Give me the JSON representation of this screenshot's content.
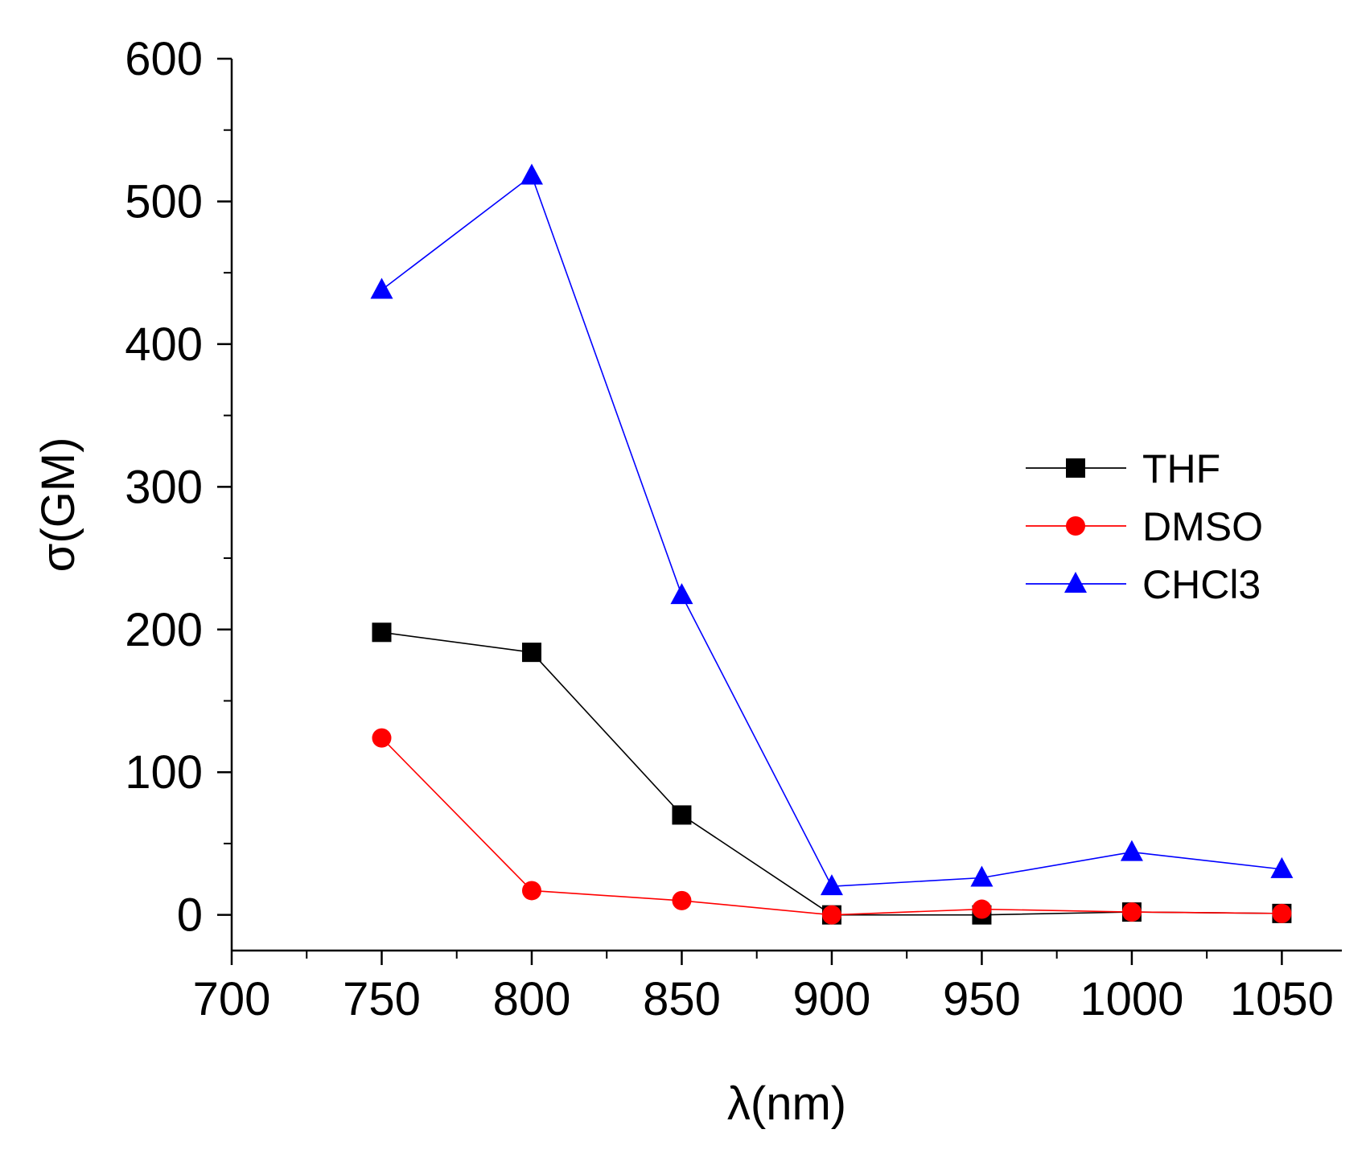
{
  "chart_data": {
    "type": "line",
    "title": "",
    "xlabel": "λ(nm)",
    "ylabel": "σ(GM)",
    "xlim": [
      700,
      1070
    ],
    "ylim": [
      -25,
      600
    ],
    "x_ticks": [
      700,
      750,
      800,
      850,
      900,
      950,
      1000,
      1050
    ],
    "x_tick_labels": [
      "700",
      "750",
      "800",
      "850",
      "900",
      "950",
      "1000",
      "1050"
    ],
    "y_ticks": [
      0,
      100,
      200,
      300,
      400,
      500,
      600
    ],
    "y_tick_labels": [
      "0",
      "100",
      "200",
      "300",
      "400",
      "500",
      "600"
    ],
    "grid": false,
    "legend_position": "right",
    "series": [
      {
        "name": "THF",
        "color": "#000000",
        "marker": "square",
        "x": [
          750,
          800,
          850,
          900,
          950,
          1000,
          1050
        ],
        "values": [
          198,
          184,
          70,
          0,
          0,
          2,
          1
        ]
      },
      {
        "name": "DMSO",
        "color": "#ff0000",
        "marker": "circle",
        "x": [
          750,
          800,
          850,
          900,
          950,
          1000,
          1050
        ],
        "values": [
          124,
          17,
          10,
          0,
          4,
          2,
          1
        ]
      },
      {
        "name": "CHCl3",
        "label": "CHCl3",
        "color": "#0000ff",
        "marker": "triangle",
        "x": [
          750,
          800,
          850,
          900,
          950,
          1000,
          1050
        ],
        "values": [
          438,
          518,
          224,
          20,
          26,
          44,
          32
        ]
      }
    ]
  }
}
